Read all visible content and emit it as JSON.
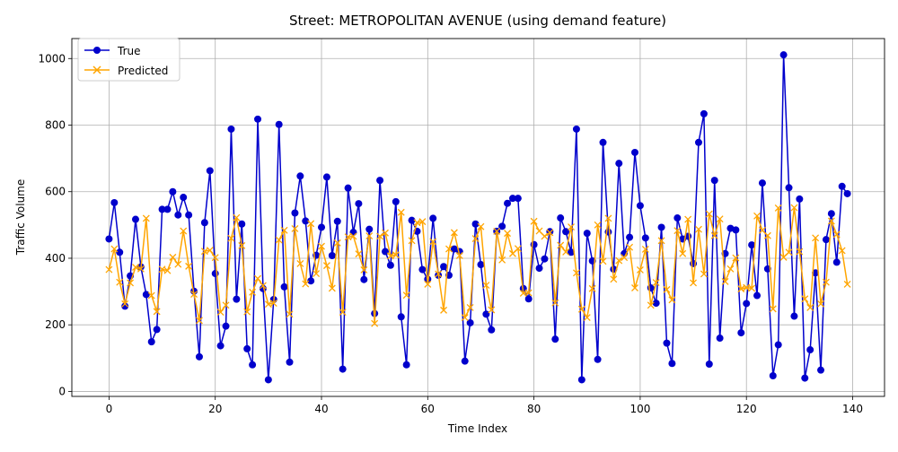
{
  "chart_data": {
    "type": "line",
    "title": "Street: METROPOLITAN AVENUE (using demand feature)",
    "xlabel": "Time Index",
    "ylabel": "Traffic Volume",
    "xlim": [
      -7,
      146
    ],
    "ylim": [
      -15,
      1060
    ],
    "xticks": [
      0,
      20,
      40,
      60,
      80,
      100,
      120,
      140
    ],
    "yticks": [
      0,
      200,
      400,
      600,
      800,
      1000
    ],
    "grid": true,
    "legend_position": "top-left",
    "series": [
      {
        "name": "True",
        "color": "#0000cc",
        "marker": "circle",
        "values": [
          458,
          567,
          418,
          256,
          347,
          517,
          374,
          291,
          149,
          186,
          547,
          547,
          600,
          530,
          583,
          530,
          301,
          104,
          507,
          663,
          354,
          137,
          196,
          788,
          277,
          503,
          128,
          80,
          818,
          309,
          35,
          276,
          802,
          314,
          88,
          536,
          647,
          512,
          332,
          409,
          493,
          644,
          408,
          511,
          67,
          611,
          478,
          564,
          336,
          487,
          234,
          634,
          420,
          379,
          570,
          224,
          80,
          514,
          481,
          366,
          337,
          520,
          349,
          375,
          349,
          428,
          420,
          91,
          206,
          503,
          381,
          232,
          185,
          481,
          496,
          565,
          580,
          580,
          309,
          278,
          441,
          370,
          398,
          480,
          157,
          521,
          480,
          418,
          788,
          35,
          475,
          392,
          96,
          748,
          479,
          367,
          685,
          414,
          463,
          718,
          558,
          461,
          311,
          265,
          493,
          145,
          84,
          521,
          458,
          466,
          384,
          748,
          834,
          82,
          634,
          160,
          414,
          490,
          485,
          176,
          264,
          440,
          288,
          626,
          368,
          47,
          140,
          1011,
          612,
          226,
          578,
          40,
          125,
          356,
          64,
          456,
          534,
          388,
          616,
          594
        ]
      },
      {
        "name": "Predicted",
        "color": "#ffa500",
        "marker": "x",
        "values": [
          366,
          428,
          328,
          263,
          326,
          373,
          368,
          520,
          288,
          240,
          367,
          363,
          403,
          382,
          482,
          376,
          292,
          213,
          421,
          424,
          402,
          238,
          259,
          460,
          522,
          438,
          239,
          298,
          339,
          318,
          262,
          265,
          455,
          484,
          232,
          489,
          384,
          323,
          504,
          354,
          436,
          378,
          310,
          446,
          238,
          464,
          466,
          413,
          365,
          467,
          204,
          466,
          476,
          407,
          410,
          538,
          289,
          453,
          507,
          510,
          322,
          450,
          353,
          244,
          428,
          477,
          408,
          222,
          252,
          459,
          495,
          319,
          245,
          481,
          395,
          475,
          414,
          429,
          295,
          296,
          511,
          482,
          466,
          477,
          266,
          439,
          419,
          494,
          356,
          247,
          222,
          309,
          500,
          391,
          520,
          337,
          393,
          402,
          433,
          311,
          365,
          427,
          259,
          327,
          453,
          306,
          275,
          483,
          414,
          517,
          326,
          487,
          353,
          533,
          468,
          518,
          330,
          368,
          401,
          308,
          312,
          310,
          527,
          484,
          468,
          248,
          551,
          403,
          418,
          552,
          420,
          278,
          252,
          461,
          263,
          328,
          512,
          472,
          423,
          322
        ]
      }
    ]
  }
}
